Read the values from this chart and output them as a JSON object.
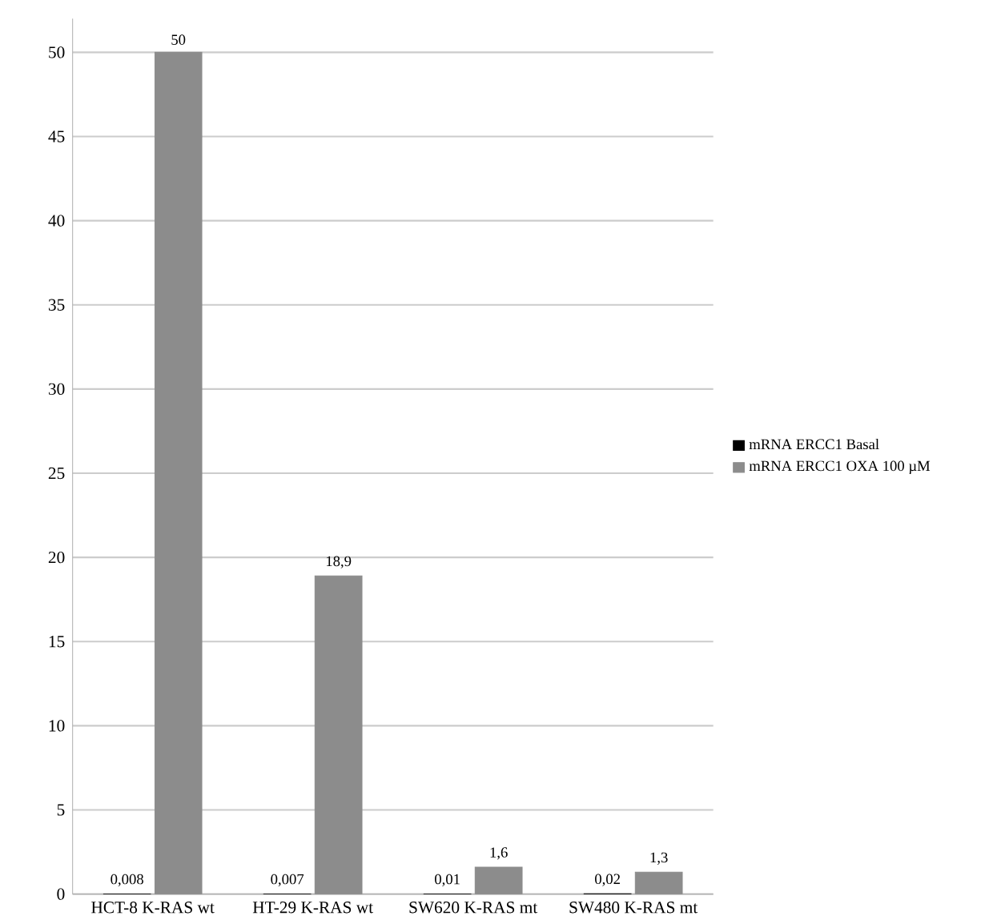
{
  "chart_data": {
    "type": "bar",
    "categories": [
      "HCT-8 K-RAS wt",
      "HT-29 K-RAS wt",
      "SW620 K-RAS mt",
      "SW480 K-RAS mt"
    ],
    "series": [
      {
        "name": "mRNA ERCC1 Basal",
        "color": "#000000",
        "values": [
          0.008,
          0.007,
          0.01,
          0.02
        ],
        "value_labels": [
          "0,008",
          "0,007",
          "0,01",
          "0,02"
        ]
      },
      {
        "name": "mRNA ERCC1 OXA 100 µM",
        "color": "#8c8c8c",
        "values": [
          50,
          18.9,
          1.6,
          1.3
        ],
        "value_labels": [
          "50",
          "18,9",
          "1,6",
          "1,3"
        ]
      }
    ],
    "ylim": [
      0,
      52
    ],
    "yticks": [
      0,
      5,
      10,
      15,
      20,
      25,
      30,
      35,
      40,
      45,
      50
    ],
    "grid": "y",
    "legend": "right"
  }
}
